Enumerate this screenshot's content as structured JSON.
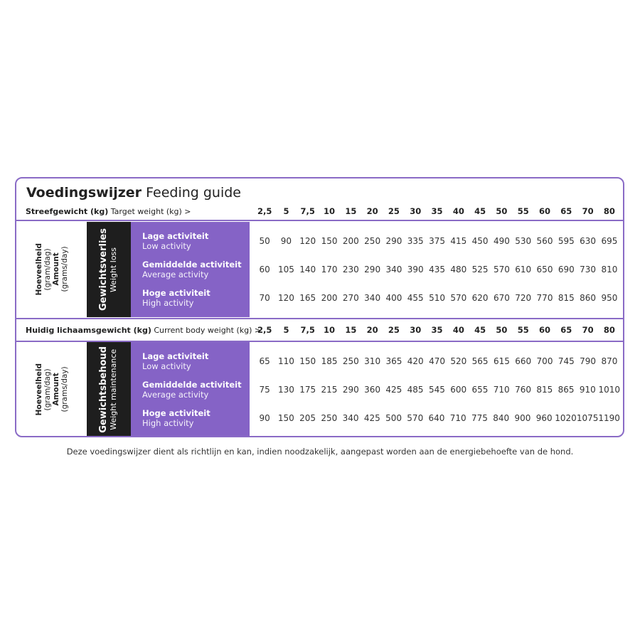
{
  "title": {
    "bold": "Voedingswijzer",
    "normal": "Feeding guide"
  },
  "sections": [
    {
      "header": {
        "bold": "Streefgewicht (kg)",
        "normal": "Target weight (kg) >"
      },
      "weights": [
        "2,5",
        "5",
        "7,5",
        "10",
        "15",
        "20",
        "25",
        "30",
        "35",
        "40",
        "45",
        "50",
        "55",
        "60",
        "65",
        "70",
        "80"
      ],
      "amount_label": {
        "nl": "Hoeveelheid",
        "nl_unit": "(gram/dag)",
        "en": "Amount",
        "en_unit": "(grams/day)"
      },
      "goal": {
        "nl": "Gewichtsverlies",
        "en": "Weight loss"
      },
      "rows": [
        {
          "nl": "Lage activiteit",
          "en": "Low activity",
          "values": [
            50,
            90,
            120,
            150,
            200,
            250,
            290,
            335,
            375,
            415,
            450,
            490,
            530,
            560,
            595,
            630,
            695
          ]
        },
        {
          "nl": "Gemiddelde activiteit",
          "en": "Average activity",
          "values": [
            60,
            105,
            140,
            170,
            230,
            290,
            340,
            390,
            435,
            480,
            525,
            570,
            610,
            650,
            690,
            730,
            810
          ]
        },
        {
          "nl": "Hoge activiteit",
          "en": "High activity",
          "values": [
            70,
            120,
            165,
            200,
            270,
            340,
            400,
            455,
            510,
            570,
            620,
            670,
            720,
            770,
            815,
            860,
            950
          ]
        }
      ]
    },
    {
      "header": {
        "bold": "Huidig lichaamsgewicht (kg)",
        "normal": "Current body weight (kg) >"
      },
      "weights": [
        "2,5",
        "5",
        "7,5",
        "10",
        "15",
        "20",
        "25",
        "30",
        "35",
        "40",
        "45",
        "50",
        "55",
        "60",
        "65",
        "70",
        "80"
      ],
      "amount_label": {
        "nl": "Hoeveelheid",
        "nl_unit": "(gram/dag)",
        "en": "Amount",
        "en_unit": "(grams/day)"
      },
      "goal": {
        "nl": "Gewichtsbehoud",
        "en": "Weight maintenance"
      },
      "rows": [
        {
          "nl": "Lage activiteit",
          "en": "Low activity",
          "values": [
            65,
            110,
            150,
            185,
            250,
            310,
            365,
            420,
            470,
            520,
            565,
            615,
            660,
            700,
            745,
            790,
            870
          ]
        },
        {
          "nl": "Gemiddelde activiteit",
          "en": "Average activity",
          "values": [
            75,
            130,
            175,
            215,
            290,
            360,
            425,
            485,
            545,
            600,
            655,
            710,
            760,
            815,
            865,
            910,
            1010
          ]
        },
        {
          "nl": "Hoge activiteit",
          "en": "High activity",
          "values": [
            90,
            150,
            205,
            250,
            340,
            425,
            500,
            570,
            640,
            710,
            775,
            840,
            900,
            960,
            1020,
            1075,
            1190
          ]
        }
      ]
    }
  ],
  "note": "Deze voedingswijzer dient als richtlijn en kan, indien noodzakelijk, aangepast worden aan de energiebehoefte van de hond.",
  "colors": {
    "accent": "#8563c6",
    "border": "#8a6bc6",
    "dark": "#1e1e1e"
  }
}
